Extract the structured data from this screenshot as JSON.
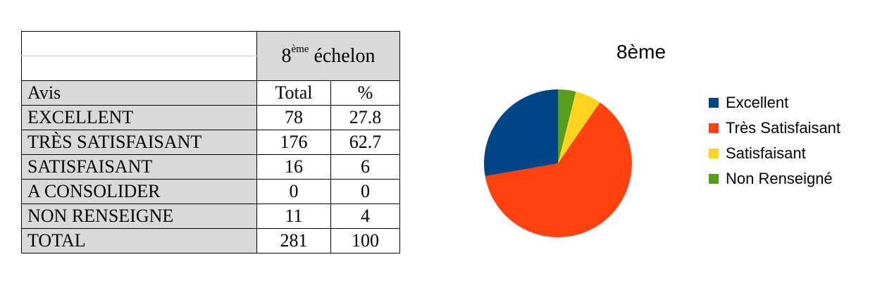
{
  "table": {
    "level_number": "8",
    "level_superscript": "ème",
    "level_word": "échelon",
    "headers": {
      "label": "Avis",
      "total": "Total",
      "percent": "%"
    },
    "rows": [
      {
        "label": "EXCELLENT",
        "total": "78",
        "percent": "27.8"
      },
      {
        "label": "TRÈS SATISFAISANT",
        "total": "176",
        "percent": "62.7"
      },
      {
        "label": "SATISFAISANT",
        "total": "16",
        "percent": "6"
      },
      {
        "label": "A CONSOLIDER",
        "total": "0",
        "percent": "0"
      },
      {
        "label": "NON RENSEIGNE",
        "total": "11",
        "percent": "4"
      },
      {
        "label": "TOTAL",
        "total": "281",
        "percent": "100"
      }
    ]
  },
  "chart_data": {
    "type": "pie",
    "title": "8ème",
    "legend_position": "right",
    "slices": [
      {
        "label": "Excellent",
        "value": 78,
        "color": "#004586"
      },
      {
        "label": "Très Satisfaisant",
        "value": 176,
        "color": "#ff420e"
      },
      {
        "label": "Satisfaisant",
        "value": 16,
        "color": "#ffd320"
      },
      {
        "label": "Non Renseigné",
        "value": 11,
        "color": "#579d1c"
      }
    ]
  }
}
